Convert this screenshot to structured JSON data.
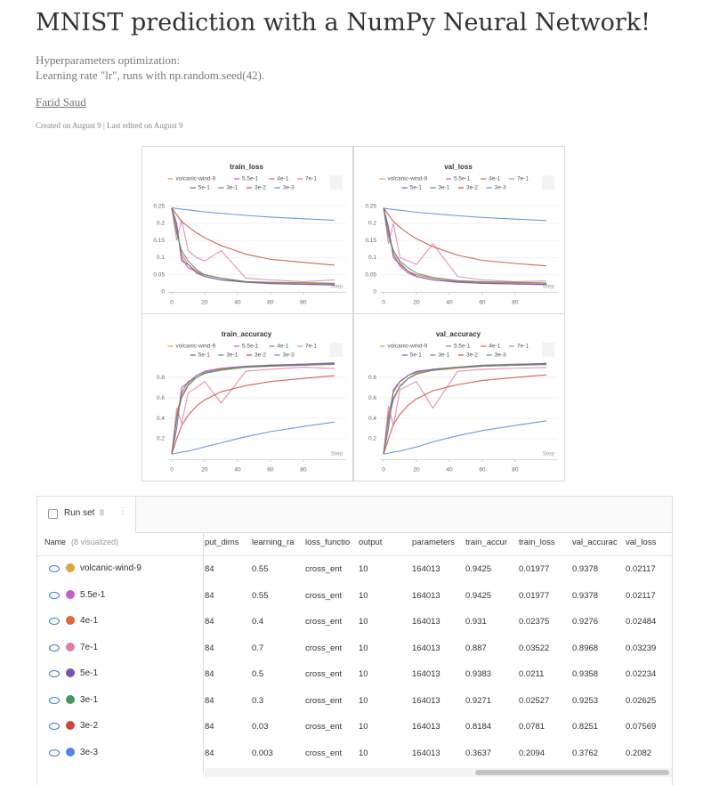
{
  "header": {
    "title": "MNIST prediction with a NumPy Neural Network!",
    "subtitle": [
      "Hyperparameters optimization:",
      "Learning rate \"lr\", runs with np.random.seed(42)."
    ],
    "author": "Farid Saud",
    "meta": "Created on August 9 | Last edited on August 9"
  },
  "chart_data": [
    {
      "type": "line",
      "title": "train_loss",
      "xlabel": "Step",
      "x": [
        0,
        3,
        6,
        10,
        15,
        20,
        30,
        45,
        60,
        80,
        99
      ],
      "xlim": [
        0,
        106
      ],
      "xticks": [
        0,
        20,
        40,
        60,
        80
      ],
      "ylim": [
        0,
        0.28
      ],
      "yticks": [
        0,
        0.05,
        0.1,
        0.15,
        0.2,
        0.25
      ],
      "grid": true,
      "series": [
        {
          "name": "volcanic-wind-9",
          "color": "#eea23a",
          "values": [
            0.245,
            0.19,
            0.1,
            0.07,
            0.06,
            0.045,
            0.035,
            0.03,
            0.025,
            0.022,
            0.02
          ]
        },
        {
          "name": "5.5e-1",
          "color": "#c45fc9",
          "values": [
            0.245,
            0.19,
            0.1,
            0.07,
            0.06,
            0.045,
            0.035,
            0.03,
            0.025,
            0.022,
            0.02
          ]
        },
        {
          "name": "4e-1",
          "color": "#e0673b",
          "values": [
            0.245,
            0.18,
            0.11,
            0.08,
            0.06,
            0.05,
            0.04,
            0.03,
            0.027,
            0.025,
            0.024
          ]
        },
        {
          "name": "7e-1",
          "color": "#e07fa8",
          "values": [
            0.245,
            0.15,
            0.21,
            0.12,
            0.1,
            0.09,
            0.12,
            0.04,
            0.035,
            0.03,
            0.035
          ]
        },
        {
          "name": "5e-1",
          "color": "#7b53ae",
          "values": [
            0.245,
            0.2,
            0.09,
            0.08,
            0.055,
            0.045,
            0.035,
            0.028,
            0.024,
            0.022,
            0.021
          ]
        },
        {
          "name": "3e-1",
          "color": "#479a5f",
          "values": [
            0.245,
            0.17,
            0.12,
            0.09,
            0.065,
            0.05,
            0.04,
            0.03,
            0.028,
            0.027,
            0.025
          ]
        },
        {
          "name": "3e-2",
          "color": "#d2453f",
          "values": [
            0.245,
            0.225,
            0.205,
            0.19,
            0.172,
            0.158,
            0.135,
            0.11,
            0.095,
            0.086,
            0.078
          ]
        },
        {
          "name": "3e-3",
          "color": "#5387dd",
          "values": [
            0.245,
            0.243,
            0.241,
            0.239,
            0.236,
            0.233,
            0.229,
            0.223,
            0.218,
            0.213,
            0.209
          ]
        }
      ]
    },
    {
      "type": "line",
      "title": "val_loss",
      "xlabel": "Step",
      "x": [
        0,
        3,
        6,
        10,
        15,
        20,
        30,
        45,
        60,
        80,
        99
      ],
      "xlim": [
        0,
        106
      ],
      "xticks": [
        0,
        20,
        40,
        60,
        80
      ],
      "ylim": [
        0,
        0.28
      ],
      "yticks": [
        0,
        0.05,
        0.1,
        0.15,
        0.2,
        0.25
      ],
      "grid": true,
      "series": [
        {
          "name": "volcanic-wind-9",
          "color": "#eea23a",
          "values": [
            0.245,
            0.18,
            0.11,
            0.075,
            0.055,
            0.045,
            0.035,
            0.03,
            0.025,
            0.023,
            0.021
          ]
        },
        {
          "name": "5.5e-1",
          "color": "#c45fc9",
          "values": [
            0.245,
            0.18,
            0.11,
            0.075,
            0.055,
            0.045,
            0.035,
            0.03,
            0.025,
            0.023,
            0.021
          ]
        },
        {
          "name": "4e-1",
          "color": "#e0673b",
          "values": [
            0.245,
            0.17,
            0.12,
            0.085,
            0.06,
            0.05,
            0.04,
            0.032,
            0.028,
            0.026,
            0.025
          ]
        },
        {
          "name": "7e-1",
          "color": "#e07fa8",
          "values": [
            0.245,
            0.14,
            0.2,
            0.1,
            0.09,
            0.08,
            0.14,
            0.045,
            0.035,
            0.03,
            0.032
          ]
        },
        {
          "name": "5e-1",
          "color": "#7b53ae",
          "values": [
            0.245,
            0.19,
            0.1,
            0.08,
            0.06,
            0.045,
            0.035,
            0.028,
            0.025,
            0.023,
            0.022
          ]
        },
        {
          "name": "3e-1",
          "color": "#479a5f",
          "values": [
            0.245,
            0.16,
            0.12,
            0.09,
            0.07,
            0.055,
            0.042,
            0.033,
            0.03,
            0.028,
            0.026
          ]
        },
        {
          "name": "3e-2",
          "color": "#d2453f",
          "values": [
            0.245,
            0.225,
            0.205,
            0.188,
            0.17,
            0.155,
            0.132,
            0.107,
            0.092,
            0.083,
            0.076
          ]
        },
        {
          "name": "3e-3",
          "color": "#5387dd",
          "values": [
            0.244,
            0.242,
            0.24,
            0.238,
            0.235,
            0.232,
            0.228,
            0.222,
            0.217,
            0.212,
            0.208
          ]
        }
      ]
    },
    {
      "type": "line",
      "title": "train_accuracy",
      "xlabel": "Step",
      "x": [
        0,
        3,
        6,
        10,
        15,
        20,
        30,
        45,
        60,
        80,
        99
      ],
      "xlim": [
        0,
        106
      ],
      "xticks": [
        0,
        20,
        40,
        60,
        80
      ],
      "ylim": [
        0,
        0.94
      ],
      "yticks": [
        0.2,
        0.4,
        0.6,
        0.8
      ],
      "grid": true,
      "series": [
        {
          "name": "volcanic-wind-9",
          "color": "#eea23a",
          "values": [
            0.05,
            0.4,
            0.65,
            0.76,
            0.8,
            0.85,
            0.88,
            0.9,
            0.92,
            0.93,
            0.9425
          ]
        },
        {
          "name": "5.5e-1",
          "color": "#c45fc9",
          "values": [
            0.05,
            0.4,
            0.65,
            0.76,
            0.8,
            0.85,
            0.88,
            0.9,
            0.92,
            0.93,
            0.9425
          ]
        },
        {
          "name": "4e-1",
          "color": "#e0673b",
          "values": [
            0.05,
            0.45,
            0.62,
            0.73,
            0.8,
            0.84,
            0.88,
            0.9,
            0.91,
            0.92,
            0.931
          ]
        },
        {
          "name": "7e-1",
          "color": "#e07fa8",
          "values": [
            0.05,
            0.5,
            0.35,
            0.65,
            0.7,
            0.76,
            0.55,
            0.86,
            0.88,
            0.9,
            0.887
          ]
        },
        {
          "name": "5e-1",
          "color": "#7b53ae",
          "values": [
            0.05,
            0.3,
            0.7,
            0.75,
            0.82,
            0.86,
            0.89,
            0.91,
            0.92,
            0.93,
            0.938
          ]
        },
        {
          "name": "3e-1",
          "color": "#479a5f",
          "values": [
            0.05,
            0.4,
            0.6,
            0.72,
            0.8,
            0.84,
            0.87,
            0.9,
            0.91,
            0.92,
            0.927
          ]
        },
        {
          "name": "3e-2",
          "color": "#d2453f",
          "values": [
            0.05,
            0.2,
            0.33,
            0.43,
            0.52,
            0.58,
            0.66,
            0.72,
            0.76,
            0.79,
            0.818
          ]
        },
        {
          "name": "3e-3",
          "color": "#5387dd",
          "values": [
            0.05,
            0.06,
            0.07,
            0.08,
            0.1,
            0.12,
            0.16,
            0.22,
            0.27,
            0.32,
            0.364
          ]
        }
      ]
    },
    {
      "type": "line",
      "title": "val_accuracy",
      "xlabel": "Step",
      "x": [
        0,
        3,
        6,
        10,
        15,
        20,
        30,
        45,
        60,
        80,
        99
      ],
      "xlim": [
        0,
        106
      ],
      "xticks": [
        0,
        20,
        40,
        60,
        80
      ],
      "ylim": [
        0,
        0.94
      ],
      "yticks": [
        0.2,
        0.4,
        0.6,
        0.8
      ],
      "grid": true,
      "series": [
        {
          "name": "volcanic-wind-9",
          "color": "#eea23a",
          "values": [
            0.05,
            0.42,
            0.66,
            0.76,
            0.82,
            0.85,
            0.88,
            0.9,
            0.91,
            0.92,
            0.938
          ]
        },
        {
          "name": "5.5e-1",
          "color": "#c45fc9",
          "values": [
            0.05,
            0.42,
            0.66,
            0.76,
            0.82,
            0.85,
            0.88,
            0.9,
            0.91,
            0.92,
            0.938
          ]
        },
        {
          "name": "4e-1",
          "color": "#e0673b",
          "values": [
            0.05,
            0.45,
            0.6,
            0.72,
            0.79,
            0.83,
            0.87,
            0.89,
            0.91,
            0.92,
            0.928
          ]
        },
        {
          "name": "7e-1",
          "color": "#e07fa8",
          "values": [
            0.05,
            0.52,
            0.33,
            0.68,
            0.72,
            0.76,
            0.5,
            0.86,
            0.88,
            0.89,
            0.897
          ]
        },
        {
          "name": "5e-1",
          "color": "#7b53ae",
          "values": [
            0.05,
            0.3,
            0.68,
            0.76,
            0.82,
            0.86,
            0.88,
            0.9,
            0.92,
            0.93,
            0.936
          ]
        },
        {
          "name": "3e-1",
          "color": "#479a5f",
          "values": [
            0.05,
            0.38,
            0.58,
            0.71,
            0.79,
            0.84,
            0.87,
            0.9,
            0.91,
            0.92,
            0.925
          ]
        },
        {
          "name": "3e-2",
          "color": "#d2453f",
          "values": [
            0.05,
            0.2,
            0.34,
            0.44,
            0.53,
            0.59,
            0.67,
            0.73,
            0.77,
            0.8,
            0.825
          ]
        },
        {
          "name": "3e-3",
          "color": "#5387dd",
          "values": [
            0.05,
            0.06,
            0.07,
            0.08,
            0.1,
            0.12,
            0.17,
            0.23,
            0.28,
            0.33,
            0.376
          ]
        }
      ]
    }
  ],
  "table": {
    "tab": "Run set",
    "tab_count": 8,
    "name_header": "Name",
    "name_note": "(8 visualized)",
    "columns": [
      "put_dims",
      "learning_ra",
      "loss_functio",
      "output",
      "parameters",
      "train_accur",
      "train_loss",
      "val_accurac",
      "val_loss"
    ],
    "rows": [
      {
        "name": "volcanic-wind-9",
        "color": "#d9a93a",
        "cells": [
          "84",
          "0.55",
          "cross_ent",
          "10",
          "164013",
          "0.9425",
          "0.01977",
          "0.9378",
          "0.02117"
        ]
      },
      {
        "name": "5.5e-1",
        "color": "#c45fc9",
        "cells": [
          "84",
          "0.55",
          "cross_ent",
          "10",
          "164013",
          "0.9425",
          "0.01977",
          "0.9378",
          "0.02117"
        ]
      },
      {
        "name": "4e-1",
        "color": "#e0673b",
        "cells": [
          "84",
          "0.4",
          "cross_ent",
          "10",
          "164013",
          "0.931",
          "0.02375",
          "0.9276",
          "0.02484"
        ]
      },
      {
        "name": "7e-1",
        "color": "#e07fa8",
        "cells": [
          "84",
          "0.7",
          "cross_ent",
          "10",
          "164013",
          "0.887",
          "0.03522",
          "0.8968",
          "0.03239"
        ]
      },
      {
        "name": "5e-1",
        "color": "#7b53ae",
        "cells": [
          "84",
          "0.5",
          "cross_ent",
          "10",
          "164013",
          "0.9383",
          "0.0211",
          "0.9358",
          "0.02234"
        ]
      },
      {
        "name": "3e-1",
        "color": "#479a5f",
        "cells": [
          "84",
          "0.3",
          "cross_ent",
          "10",
          "164013",
          "0.9271",
          "0.02527",
          "0.9253",
          "0.02625"
        ]
      },
      {
        "name": "3e-2",
        "color": "#d2453f",
        "cells": [
          "84",
          "0.03",
          "cross_ent",
          "10",
          "164013",
          "0.8184",
          "0.0781",
          "0.8251",
          "0.07569"
        ]
      },
      {
        "name": "3e-3",
        "color": "#5387dd",
        "cells": [
          "84",
          "0.003",
          "cross_ent",
          "10",
          "164013",
          "0.3637",
          "0.2094",
          "0.3762",
          "0.2082"
        ]
      }
    ]
  }
}
